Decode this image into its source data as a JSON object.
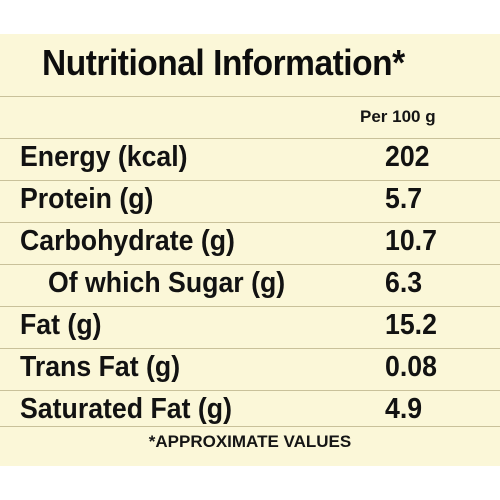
{
  "title": "Nutritional Information*",
  "column_header": "Per 100 g",
  "rows": [
    {
      "label": "Energy (kcal)",
      "value": "202"
    },
    {
      "label": "Protein (g)",
      "value": "5.7"
    },
    {
      "label": "Carbohydrate (g)",
      "value": "10.7"
    },
    {
      "label": "Of which Sugar (g)",
      "value": "6.3"
    },
    {
      "label": "Fat (g)",
      "value": "15.2"
    },
    {
      "label": "Trans Fat (g)",
      "value": "0.08"
    },
    {
      "label": "Saturated Fat (g)",
      "value": "4.9"
    }
  ],
  "footnote": "*APPROXIMATE VALUES",
  "colors": {
    "background": "#fbf7d8",
    "rule": "#c9c19a",
    "text": "#121212"
  }
}
